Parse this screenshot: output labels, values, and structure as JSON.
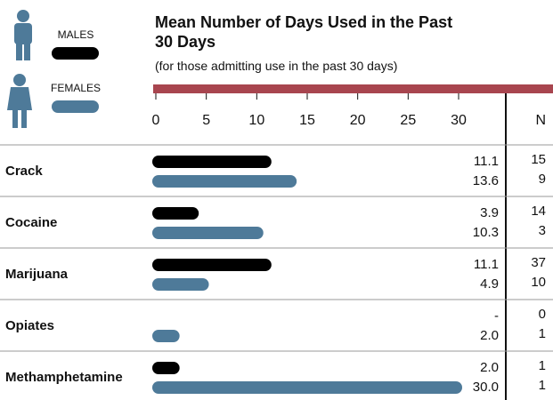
{
  "chart_data": {
    "type": "bar",
    "title": "Mean Number of Days Used in the Past 30 Days",
    "subtitle": "(for those admitting use in the past 30 days)",
    "categories": [
      "Crack",
      "Cocaine",
      "Marijuana",
      "Opiates",
      "Methamphetamine"
    ],
    "series": [
      {
        "name": "MALES",
        "color": "#000000",
        "values": [
          11.1,
          3.9,
          11.1,
          null,
          2.0
        ],
        "value_labels": [
          "11.1",
          "3.9",
          "11.1",
          "-",
          "2.0"
        ],
        "n": [
          15,
          14,
          37,
          0,
          1
        ]
      },
      {
        "name": "FEMALES",
        "color": "#4e7a99",
        "values": [
          13.6,
          10.3,
          4.9,
          2.0,
          30.0
        ],
        "value_labels": [
          "13.6",
          "10.3",
          "4.9",
          "2.0",
          "30.0"
        ],
        "n": [
          9,
          3,
          10,
          1,
          1
        ]
      }
    ],
    "n_label": "N",
    "xlim": [
      0,
      30
    ],
    "xticks": [
      0,
      5,
      10,
      15,
      20,
      25,
      30
    ]
  }
}
